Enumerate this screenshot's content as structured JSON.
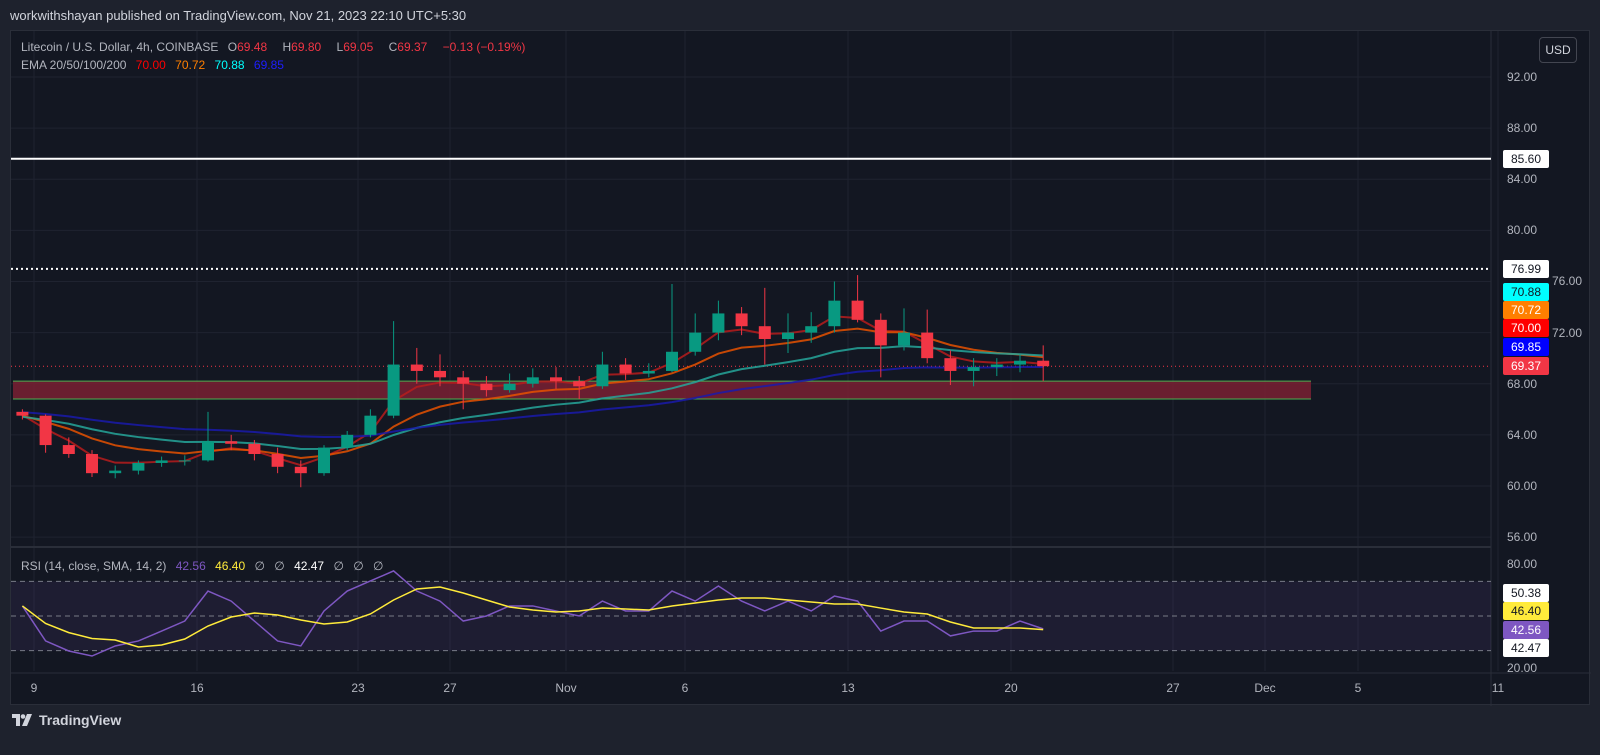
{
  "header": {
    "publisher": "workwithshayan published on TradingView.com, Nov 21, 2023 22:10 UTC+5:30"
  },
  "legend": {
    "symbol": "Litecoin / U.S. Dollar, 4h, COINBASE",
    "o_label": "O",
    "o": "69.48",
    "h_label": "H",
    "h": "69.80",
    "l_label": "L",
    "l": "69.05",
    "c_label": "C",
    "c": "69.37",
    "change": "−0.13 (−0.19%)",
    "ema_label": "EMA 20/50/100/200",
    "ema20": "70.00",
    "ema50": "70.72",
    "ema100": "70.88",
    "ema200": "69.85"
  },
  "rsi_legend": {
    "label": "RSI (14, close, SMA, 14, 2)",
    "rsi": "42.56",
    "sma": "46.40",
    "z1": "∅",
    "z2": "∅",
    "lower": "42.47",
    "z3": "∅",
    "z4": "∅",
    "z5": "∅"
  },
  "currency_button": "USD",
  "price_axis": [
    "92.00",
    "88.00",
    "84.00",
    "80.00",
    "76.00",
    "72.00",
    "68.00",
    "64.00",
    "60.00",
    "56.00"
  ],
  "rsi_axis": [
    "80.00",
    "20.00"
  ],
  "price_badges": [
    {
      "text": "85.60",
      "bg": "#ffffff",
      "fg": "#131722"
    },
    {
      "text": "76.99",
      "bg": "#ffffff",
      "fg": "#131722"
    },
    {
      "text": "70.88",
      "bg": "#00ffff",
      "fg": "#131722"
    },
    {
      "text": "70.72",
      "bg": "#ff7f00",
      "fg": "#ffffff"
    },
    {
      "text": "70.00",
      "bg": "#ff0000",
      "fg": "#ffffff"
    },
    {
      "text": "69.85",
      "bg": "#0000ff",
      "fg": "#ffffff"
    },
    {
      "text": "69.37",
      "bg": "#f23645",
      "fg": "#ffffff"
    }
  ],
  "rsi_badges": [
    {
      "text": "50.38",
      "bg": "#ffffff",
      "fg": "#131722"
    },
    {
      "text": "46.40",
      "bg": "#ffeb3b",
      "fg": "#131722"
    },
    {
      "text": "42.56",
      "bg": "#7e57c2",
      "fg": "#ffffff"
    },
    {
      "text": "42.47",
      "bg": "#ffffff",
      "fg": "#131722"
    }
  ],
  "date_axis": [
    "9",
    "16",
    "23",
    "27",
    "Nov",
    "6",
    "13",
    "20",
    "27",
    "Dec",
    "5",
    "11"
  ],
  "brand": "TradingView",
  "colors": {
    "up": "#089981",
    "down": "#f23645",
    "ema20": "#b71c1c",
    "ema50": "#e65100",
    "ema100": "#26a69a",
    "ema200": "#1a1aaa",
    "rsi": "#7e57c2",
    "rsi_sma": "#ffeb3b",
    "zone": "#7a2033",
    "zone_border": "#4caf50"
  },
  "chart_data": {
    "type": "candlestick",
    "price_range": [
      54,
      94
    ],
    "horizontal_levels": [
      {
        "price": 85.6,
        "style": "solid"
      },
      {
        "price": 76.99,
        "style": "dotted"
      },
      {
        "price": 69.37,
        "style": "dotted-current"
      }
    ],
    "zone": {
      "from": 66.8,
      "to": 68.2,
      "until": "Dec 3"
    },
    "dates": [
      "Oct 8",
      "Oct 9",
      "Oct 10",
      "Oct 11",
      "Oct 12",
      "Oct 13",
      "Oct 14",
      "Oct 15",
      "Oct 16",
      "Oct 17",
      "Oct 18",
      "Oct 19",
      "Oct 20",
      "Oct 21",
      "Oct 22",
      "Oct 23",
      "Oct 24",
      "Oct 25",
      "Oct 26",
      "Oct 27",
      "Oct 28",
      "Oct 29",
      "Oct 30",
      "Oct 31",
      "Nov 1",
      "Nov 2",
      "Nov 3",
      "Nov 4",
      "Nov 5",
      "Nov 6",
      "Nov 7",
      "Nov 8",
      "Nov 9",
      "Nov 10",
      "Nov 11",
      "Nov 12",
      "Nov 13",
      "Nov 14",
      "Nov 15",
      "Nov 16",
      "Nov 17",
      "Nov 18",
      "Nov 19",
      "Nov 20",
      "Nov 21"
    ],
    "ohlc": [
      [
        65.8,
        66.0,
        65.2,
        65.5
      ],
      [
        65.5,
        65.6,
        62.6,
        63.2
      ],
      [
        63.2,
        63.8,
        62.2,
        62.5
      ],
      [
        62.5,
        62.8,
        60.7,
        61.0
      ],
      [
        61.0,
        61.6,
        60.6,
        61.2
      ],
      [
        61.2,
        62.0,
        60.9,
        61.8
      ],
      [
        61.8,
        62.3,
        61.5,
        62.0
      ],
      [
        62.0,
        62.4,
        61.6,
        62.0
      ],
      [
        62.0,
        65.8,
        61.9,
        63.5
      ],
      [
        63.5,
        64.0,
        62.8,
        63.3
      ],
      [
        63.3,
        63.6,
        62.0,
        62.5
      ],
      [
        62.5,
        63.0,
        61.0,
        61.5
      ],
      [
        61.5,
        62.0,
        59.9,
        61.0
      ],
      [
        61.0,
        63.2,
        60.8,
        63.0
      ],
      [
        63.0,
        64.3,
        62.8,
        64.0
      ],
      [
        64.0,
        66.0,
        63.8,
        65.5
      ],
      [
        65.5,
        72.9,
        65.3,
        69.5
      ],
      [
        69.5,
        70.8,
        68.0,
        69.0
      ],
      [
        69.0,
        70.3,
        67.8,
        68.5
      ],
      [
        68.5,
        69.0,
        66.0,
        68.0
      ],
      [
        68.0,
        68.6,
        67.0,
        67.5
      ],
      [
        67.5,
        68.8,
        67.3,
        68.0
      ],
      [
        68.0,
        69.2,
        67.7,
        68.5
      ],
      [
        68.5,
        69.3,
        67.6,
        68.2
      ],
      [
        68.2,
        68.6,
        66.8,
        67.8
      ],
      [
        67.8,
        70.5,
        67.6,
        69.5
      ],
      [
        69.5,
        70.0,
        68.3,
        68.8
      ],
      [
        68.8,
        69.6,
        68.5,
        69.0
      ],
      [
        69.0,
        75.8,
        68.9,
        70.5
      ],
      [
        70.5,
        73.5,
        70.2,
        72.0
      ],
      [
        72.0,
        74.5,
        71.4,
        73.5
      ],
      [
        73.5,
        74.0,
        71.8,
        72.5
      ],
      [
        72.5,
        75.5,
        69.5,
        71.5
      ],
      [
        71.5,
        73.5,
        70.4,
        72.0
      ],
      [
        72.0,
        73.6,
        71.2,
        72.5
      ],
      [
        72.5,
        76.0,
        72.0,
        74.5
      ],
      [
        74.5,
        76.5,
        72.8,
        73.0
      ],
      [
        73.0,
        73.5,
        68.5,
        71.0
      ],
      [
        71.0,
        73.9,
        70.6,
        72.0
      ],
      [
        72.0,
        73.8,
        69.6,
        70.0
      ],
      [
        70.0,
        70.6,
        67.9,
        69.0
      ],
      [
        69.0,
        70.0,
        67.8,
        69.3
      ],
      [
        69.3,
        70.0,
        68.6,
        69.5
      ],
      [
        69.5,
        70.3,
        68.9,
        69.8
      ],
      [
        69.8,
        71.0,
        68.2,
        69.37
      ]
    ],
    "rsi": [
      55.8,
      35.6,
      29.8,
      26.9,
      32.7,
      35.6,
      41.3,
      47.1,
      64.4,
      58.6,
      47.1,
      35.6,
      32.7,
      52.9,
      64.4,
      70.2,
      76.0,
      64.4,
      58.6,
      47.1,
      50.0,
      55.8,
      55.8,
      52.9,
      50.0,
      58.6,
      52.9,
      52.9,
      64.4,
      58.6,
      67.3,
      58.6,
      52.9,
      58.6,
      52.9,
      61.5,
      58.6,
      41.3,
      47.1,
      47.1,
      38.5,
      41.3,
      41.3,
      47.1,
      42.56
    ],
    "rsi_range": [
      20,
      80
    ],
    "rsi_bands": [
      70,
      50,
      30
    ]
  }
}
